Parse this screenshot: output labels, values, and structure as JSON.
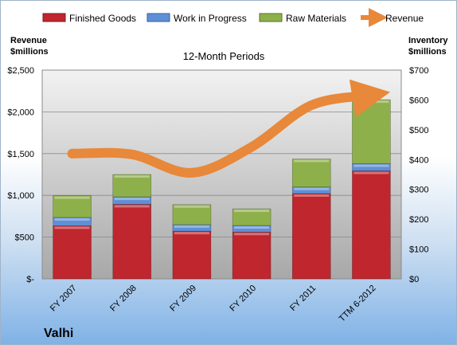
{
  "chart_data": {
    "type": "bar",
    "subtitle": "12-Month Periods",
    "company": "Valhi",
    "categories": [
      "FY 2007",
      "FY 2008",
      "FY 2009",
      "FY 2010",
      "FY 2011",
      "TTM 6-2012"
    ],
    "left_axis": {
      "title": [
        "Revenue",
        "$millions"
      ],
      "ticks": [
        "$-",
        "$500",
        "$1,000",
        "$1,500",
        "$2,000",
        "$2,500"
      ],
      "ylim": [
        0,
        2500
      ]
    },
    "right_axis": {
      "title": [
        "Inventory",
        "$millions"
      ],
      "ticks": [
        "$0",
        "$100",
        "$200",
        "$300",
        "$400",
        "$500",
        "$600",
        "$700"
      ],
      "ylim": [
        0,
        700
      ]
    },
    "series": [
      {
        "name": "Finished Goods",
        "axis": "right",
        "color": "#c0262d",
        "values": [
          178,
          250,
          160,
          157,
          286,
          362
        ]
      },
      {
        "name": "Work in Progress",
        "axis": "right",
        "color": "#5f8fd6",
        "values": [
          28,
          25,
          22,
          22,
          22,
          24
        ]
      },
      {
        "name": "Raw Materials",
        "axis": "right",
        "color": "#8eb04a",
        "values": [
          73,
          75,
          67,
          56,
          94,
          215
        ]
      },
      {
        "name": "Revenue",
        "axis": "left",
        "type": "line",
        "color": "#e8883a",
        "values": [
          1500,
          1490,
          1270,
          1580,
          2080,
          2200
        ]
      }
    ],
    "legend_position": "top",
    "grid": true
  }
}
